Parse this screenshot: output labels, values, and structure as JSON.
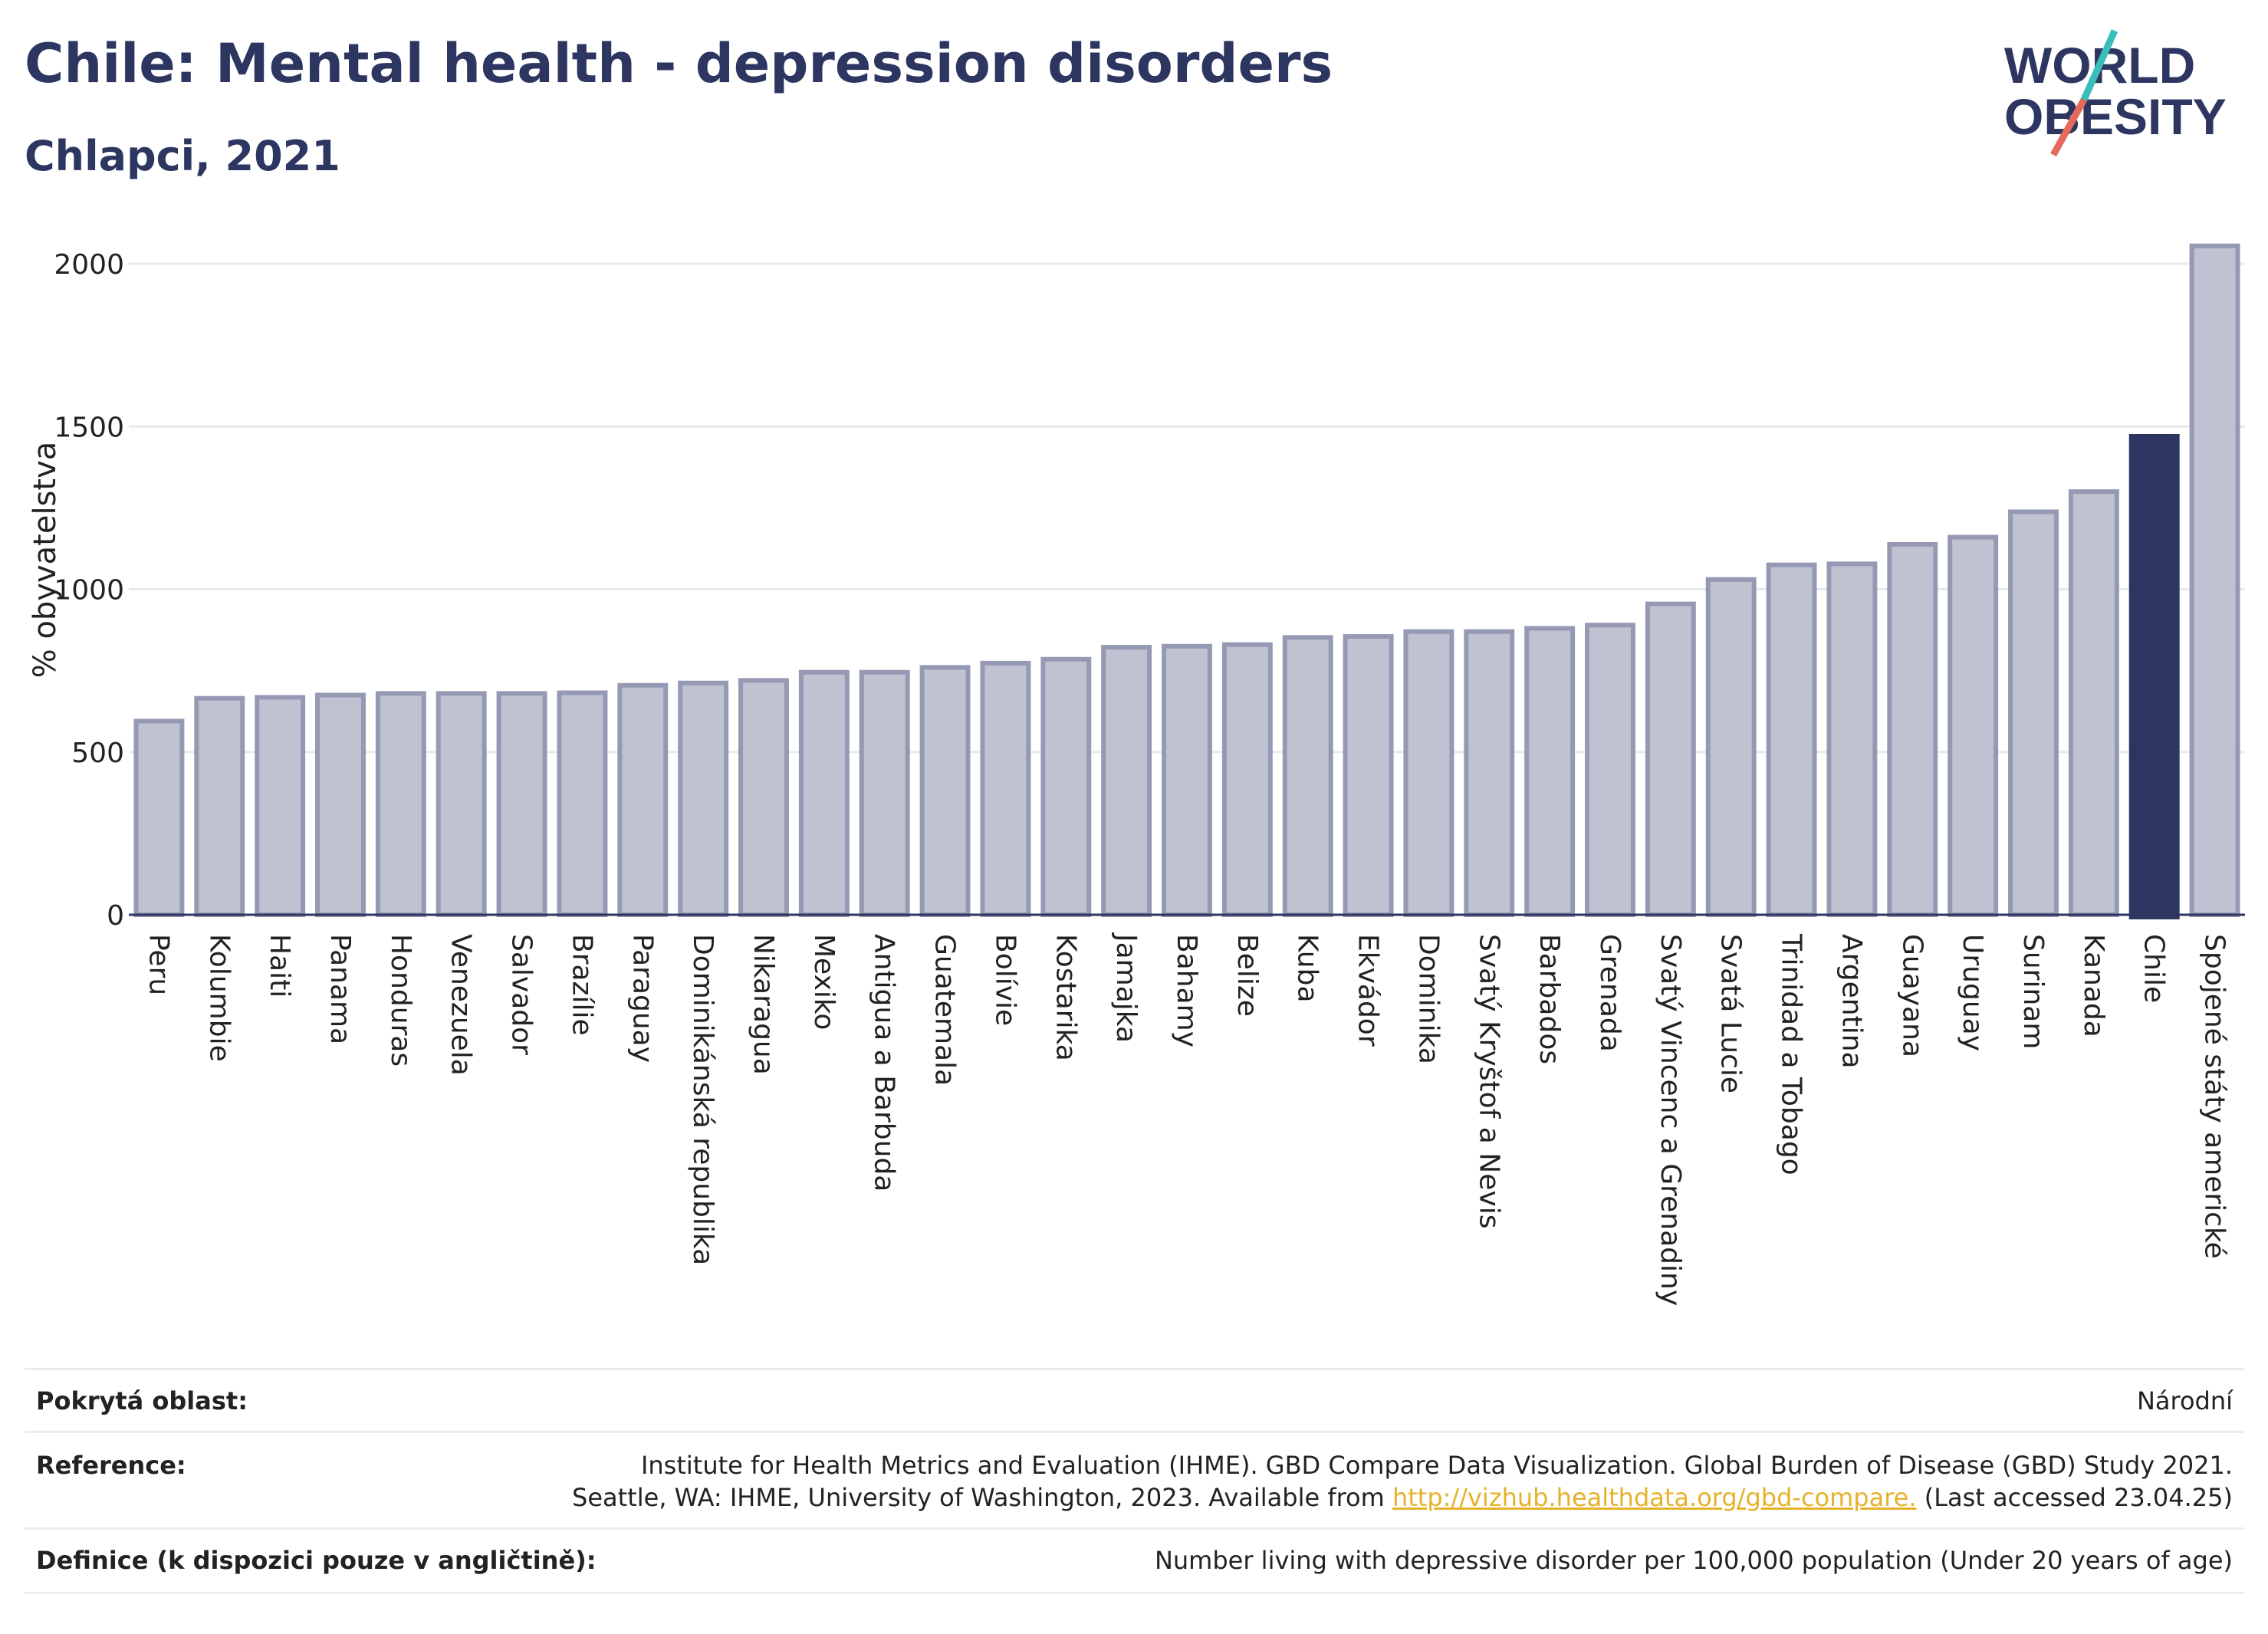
{
  "title": "Chile: Mental health - depression disorders",
  "subtitle": "Chlapci, 2021",
  "logo": {
    "line1": "WORLD",
    "line2": "OBESITY"
  },
  "colors": {
    "bar": "#bfc2d0",
    "bar_stroke": "#9599b4",
    "highlight": "#2d3561",
    "text": "#2d3561",
    "link": "#e5b22a"
  },
  "chart_data": {
    "type": "bar",
    "title": "",
    "ylabel": "% obyvatelstva",
    "xlabel": "",
    "ylim": [
      0,
      2100
    ],
    "yticks": [
      0,
      500,
      1000,
      1500,
      2000
    ],
    "grid": true,
    "highlight": "Chile",
    "categories": [
      "Peru",
      "Kolumbie",
      "Haiti",
      "Panama",
      "Honduras",
      "Venezuela",
      "Salvador",
      "Brazílie",
      "Paraguay",
      "Dominikánská republika",
      "Nikaragua",
      "Mexiko",
      "Antigua a Barbuda",
      "Guatemala",
      "Bolívie",
      "Kostarika",
      "Jamajka",
      "Bahamy",
      "Belize",
      "Kuba",
      "Ekvádor",
      "Dominika",
      "Svatý Kryštof a Nevis",
      "Barbados",
      "Grenada",
      "Svatý Vincenc a Grenadiny",
      "Svatá Lucie",
      "Trinidad a Tobago",
      "Argentina",
      "Guayana",
      "Uruguay",
      "Surinam",
      "Kanada",
      "Chile",
      "Spojené státy americké"
    ],
    "values": [
      595,
      665,
      668,
      675,
      680,
      680,
      680,
      682,
      705,
      712,
      720,
      745,
      745,
      760,
      773,
      785,
      822,
      825,
      830,
      852,
      855,
      870,
      870,
      880,
      890,
      955,
      1030,
      1075,
      1078,
      1138,
      1160,
      1238,
      1300,
      1470,
      2055
    ]
  },
  "info": {
    "coverage_label": "Pokrytá oblast:",
    "coverage_value": "Národní",
    "reference_label": "Reference:",
    "reference_line1": "Institute for Health Metrics and Evaluation (IHME). GBD Compare Data Visualization. Global Burden of Disease (GBD) Study 2021.",
    "reference_line2_pre": "Seattle, WA: IHME, University of Washington, 2023. Available from ",
    "reference_link": "http://vizhub.healthdata.org/gbd-compare.",
    "reference_line2_post": " (Last accessed 23.04.25)",
    "definition_label": "Definice (k dispozici pouze v angličtině):",
    "definition_value": "Number living with depressive disorder per 100,000 population (Under 20 years of age)"
  }
}
